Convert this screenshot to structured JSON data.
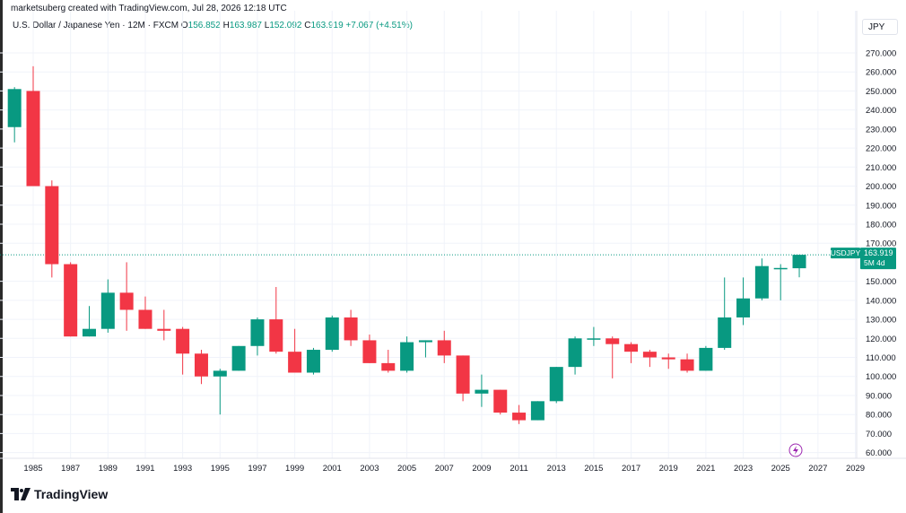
{
  "header": {
    "credit": "marketsuberg created with TradingView.com, Jul 28, 2026 12:18 UTC",
    "symbol_desc": "U.S. Dollar / Japanese Yen · 12M · FXCM",
    "o_label": "O",
    "o_value": "156.852",
    "h_label": "H",
    "h_value": "163.987",
    "l_label": "L",
    "l_value": "152.092",
    "c_label": "C",
    "c_value": "163.919",
    "change": "+7.067 (+4.51%)"
  },
  "currency": "JPY",
  "price_tag": {
    "symbol": "USDJPY",
    "price": "163.919",
    "countdown": "5M 4d"
  },
  "brand": "TradingView",
  "colors": {
    "up": "#089981",
    "down": "#f23645",
    "grid": "#f0f3fa",
    "text": "#131722"
  },
  "chart_data": {
    "type": "candlestick",
    "interval": "12M",
    "y_axis_ticks": [
      "270.000",
      "260.000",
      "250.000",
      "240.000",
      "230.000",
      "220.000",
      "210.000",
      "200.000",
      "190.000",
      "180.000",
      "170.000",
      "150.000",
      "140.000",
      "130.000",
      "120.000",
      "110.000",
      "100.000",
      "90.000",
      "80.000",
      "70.000",
      "60.000"
    ],
    "x_axis_ticks": [
      "1985",
      "1987",
      "1989",
      "1991",
      "1993",
      "1995",
      "1997",
      "1999",
      "2001",
      "2003",
      "2005",
      "2007",
      "2009",
      "2011",
      "2013",
      "2015",
      "2017",
      "2019",
      "2021",
      "2023",
      "2025",
      "2027",
      "2029"
    ],
    "ylim": [
      57,
      278
    ],
    "xlim": [
      1983.7,
      2029.9
    ],
    "last_price": 163.919,
    "candles": [
      {
        "year": 1984,
        "o": 231,
        "h": 252,
        "l": 223,
        "c": 251
      },
      {
        "year": 1985,
        "o": 250,
        "h": 263,
        "l": 200,
        "c": 200
      },
      {
        "year": 1986,
        "o": 200,
        "h": 203,
        "l": 152,
        "c": 159
      },
      {
        "year": 1987,
        "o": 159,
        "h": 160,
        "l": 121,
        "c": 121
      },
      {
        "year": 1988,
        "o": 121,
        "h": 137,
        "l": 121,
        "c": 125
      },
      {
        "year": 1989,
        "o": 125,
        "h": 151,
        "l": 123,
        "c": 144
      },
      {
        "year": 1990,
        "o": 144,
        "h": 160,
        "l": 124,
        "c": 135
      },
      {
        "year": 1991,
        "o": 135,
        "h": 142,
        "l": 125,
        "c": 125
      },
      {
        "year": 1992,
        "o": 125,
        "h": 135,
        "l": 119,
        "c": 124
      },
      {
        "year": 1993,
        "o": 125,
        "h": 126,
        "l": 101,
        "c": 112
      },
      {
        "year": 1994,
        "o": 112,
        "h": 114,
        "l": 96,
        "c": 100
      },
      {
        "year": 1995,
        "o": 100,
        "h": 104,
        "l": 80,
        "c": 103
      },
      {
        "year": 1996,
        "o": 103,
        "h": 116,
        "l": 103,
        "c": 116
      },
      {
        "year": 1997,
        "o": 116,
        "h": 131,
        "l": 111,
        "c": 130
      },
      {
        "year": 1998,
        "o": 130,
        "h": 147,
        "l": 112,
        "c": 113
      },
      {
        "year": 1999,
        "o": 113,
        "h": 125,
        "l": 102,
        "c": 102
      },
      {
        "year": 2000,
        "o": 102,
        "h": 115,
        "l": 101,
        "c": 114
      },
      {
        "year": 2001,
        "o": 114,
        "h": 132,
        "l": 113,
        "c": 131
      },
      {
        "year": 2002,
        "o": 131,
        "h": 135,
        "l": 116,
        "c": 119
      },
      {
        "year": 2003,
        "o": 119,
        "h": 122,
        "l": 107,
        "c": 107
      },
      {
        "year": 2004,
        "o": 107,
        "h": 114,
        "l": 102,
        "c": 103
      },
      {
        "year": 2005,
        "o": 103,
        "h": 121,
        "l": 102,
        "c": 118
      },
      {
        "year": 2006,
        "o": 118,
        "h": 119,
        "l": 110,
        "c": 119
      },
      {
        "year": 2007,
        "o": 119,
        "h": 124,
        "l": 107,
        "c": 111
      },
      {
        "year": 2008,
        "o": 111,
        "h": 111,
        "l": 87,
        "c": 91
      },
      {
        "year": 2009,
        "o": 91,
        "h": 101,
        "l": 84,
        "c": 93
      },
      {
        "year": 2010,
        "o": 93,
        "h": 93,
        "l": 80,
        "c": 81
      },
      {
        "year": 2011,
        "o": 81,
        "h": 85,
        "l": 75,
        "c": 77
      },
      {
        "year": 2012,
        "o": 77,
        "h": 87,
        "l": 77,
        "c": 87
      },
      {
        "year": 2013,
        "o": 87,
        "h": 105,
        "l": 86,
        "c": 105
      },
      {
        "year": 2014,
        "o": 105,
        "h": 121,
        "l": 101,
        "c": 120
      },
      {
        "year": 2015,
        "o": 120,
        "h": 126,
        "l": 116,
        "c": 120
      },
      {
        "year": 2016,
        "o": 120,
        "h": 121,
        "l": 99,
        "c": 117
      },
      {
        "year": 2017,
        "o": 117,
        "h": 118,
        "l": 107,
        "c": 113
      },
      {
        "year": 2018,
        "o": 113,
        "h": 114,
        "l": 105,
        "c": 110
      },
      {
        "year": 2019,
        "o": 110,
        "h": 112,
        "l": 104,
        "c": 109
      },
      {
        "year": 2020,
        "o": 109,
        "h": 112,
        "l": 102,
        "c": 103
      },
      {
        "year": 2021,
        "o": 103,
        "h": 116,
        "l": 103,
        "c": 115
      },
      {
        "year": 2022,
        "o": 115,
        "h": 152,
        "l": 114,
        "c": 131
      },
      {
        "year": 2023,
        "o": 131,
        "h": 152,
        "l": 127,
        "c": 141
      },
      {
        "year": 2024,
        "o": 141,
        "h": 162,
        "l": 140,
        "c": 158
      },
      {
        "year": 2025,
        "o": 157,
        "h": 159,
        "l": 140,
        "c": 157
      },
      {
        "year": 2026,
        "o": 156.852,
        "h": 163.987,
        "l": 152.092,
        "c": 163.919
      }
    ]
  }
}
